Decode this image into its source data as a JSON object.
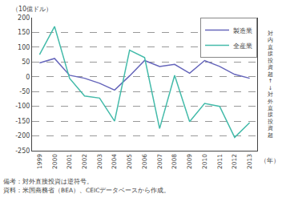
{
  "chart_data": {
    "type": "line",
    "x": [
      1999,
      2000,
      2001,
      2002,
      2003,
      2004,
      2005,
      2006,
      2007,
      2008,
      2009,
      2010,
      2011,
      2012,
      2013
    ],
    "series": [
      {
        "name": "製造業",
        "color": "#6666bb",
        "values": [
          47,
          62,
          5,
          -5,
          -22,
          -45,
          3,
          55,
          35,
          42,
          12,
          55,
          35,
          8,
          -5
        ]
      },
      {
        "name": "全産業",
        "color": "#44bbaa",
        "values": [
          75,
          170,
          -5,
          -65,
          -72,
          -150,
          90,
          65,
          -175,
          5,
          -152,
          -90,
          -100,
          -205,
          -155
        ]
      }
    ],
    "xlim": [
      1998.5,
      2013.5
    ],
    "xticks": [
      1999,
      2000,
      2001,
      2002,
      2003,
      2004,
      2005,
      2006,
      2007,
      2008,
      2009,
      2010,
      2011,
      2012,
      2013
    ],
    "ylim": [
      -250,
      200
    ],
    "yticks": [
      -250,
      -200,
      -150,
      -100,
      -50,
      0,
      50,
      100,
      150,
      200
    ],
    "x_label": "（年）",
    "y_label": "（10億ドル）",
    "y2_label": "対\n内\n直\n接\n投\n資\n超\n↑\n↓\n対\n外\n直\n接\n投\n資\n超",
    "annotations": [
      "備考：対外直接投資は逆符号。",
      "資料：米国商務省（BEA）、CEICデータベースから作成。"
    ],
    "grid": "y",
    "legend": "upper right"
  }
}
